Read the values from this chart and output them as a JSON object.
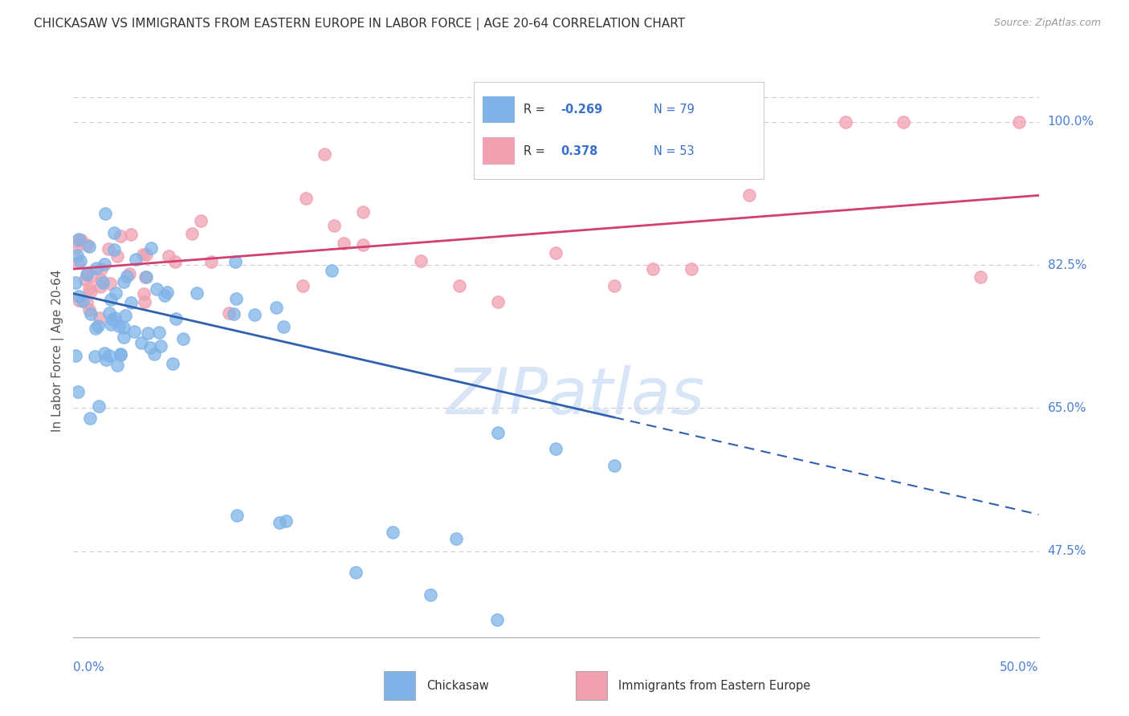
{
  "title": "CHICKASAW VS IMMIGRANTS FROM EASTERN EUROPE IN LABOR FORCE | AGE 20-64 CORRELATION CHART",
  "source": "Source: ZipAtlas.com",
  "ylabel": "In Labor Force | Age 20-64",
  "blue_color": "#7fb3e8",
  "pink_color": "#f0a0b0",
  "blue_line_color": "#3060b0",
  "pink_line_color": "#d04070",
  "watermark_text": "ZIPatlas",
  "watermark_color": "#c8daf5",
  "legend_R_blue": "-0.269",
  "legend_N_blue": "79",
  "legend_R_pink": "0.378",
  "legend_N_pink": "53",
  "xlim": [
    0,
    50
  ],
  "ylim": [
    37,
    107
  ],
  "right_yticks": [
    47.5,
    65.0,
    82.5,
    100.0
  ],
  "right_ytick_labels": [
    "47.5%",
    "65.0%",
    "82.5%",
    "100.0%"
  ],
  "blue_trend_x": [
    0,
    28,
    50
  ],
  "blue_trend_y": [
    79,
    65.5,
    52
  ],
  "blue_solid_end": 28,
  "pink_trend_x": [
    0,
    50
  ],
  "pink_trend_y": [
    82,
    91
  ]
}
